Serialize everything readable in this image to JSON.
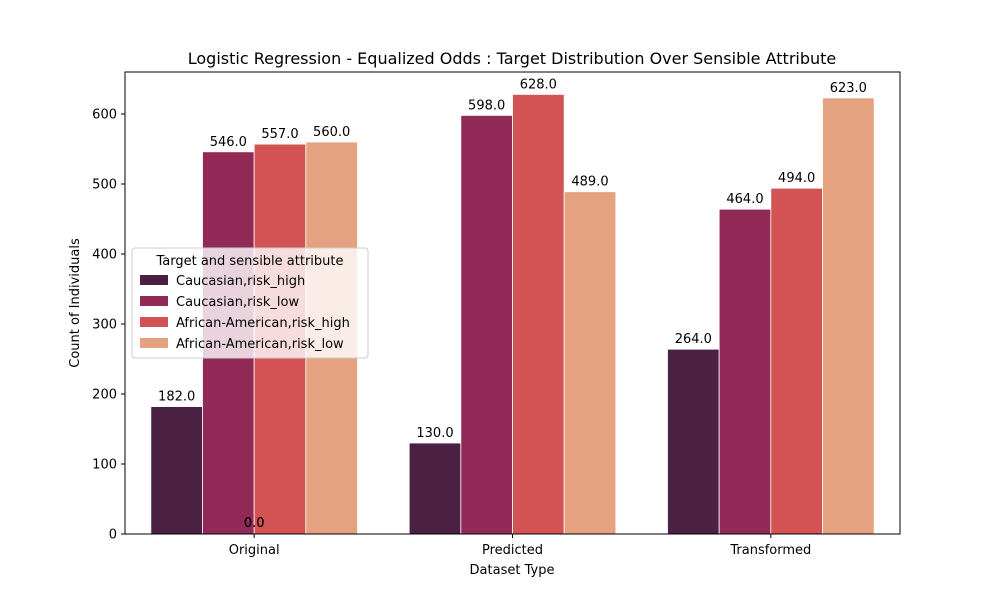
{
  "chart_data": {
    "type": "bar",
    "title": "Logistic Regression - Equalized Odds : Target Distribution Over Sensible Attribute",
    "xlabel": "Dataset Type",
    "ylabel": "Count of Individuals",
    "categories": [
      "Original",
      "Predicted",
      "Transformed"
    ],
    "ylim": [
      0,
      660
    ],
    "yticks": [
      0,
      100,
      200,
      300,
      400,
      500,
      600
    ],
    "legend": {
      "title": "Target and sensible attribute",
      "placement": "center-left"
    },
    "series": [
      {
        "name": "Caucasian,risk_high",
        "color": "#4a2142",
        "values": [
          182.0,
          130.0,
          264.0
        ],
        "labels": [
          "182.0",
          "130.0",
          "264.0"
        ]
      },
      {
        "name": "Caucasian,risk_low",
        "color": "#922a58",
        "values": [
          546.0,
          598.0,
          464.0
        ],
        "labels": [
          "546.0",
          "598.0",
          "464.0"
        ]
      },
      {
        "name": "African-American,risk_high",
        "color": "#d35355",
        "values": [
          557.0,
          628.0,
          494.0
        ],
        "labels": [
          "557.0",
          "628.0",
          "494.0"
        ]
      },
      {
        "name": "African-American,risk_low",
        "color": "#e5a280",
        "values": [
          560.0,
          489.0,
          623.0
        ],
        "labels": [
          "560.0",
          "489.0",
          "623.0"
        ]
      }
    ],
    "extra_annotations": [
      {
        "text": "0.0",
        "category": "Original",
        "value": 0
      },
      {
        "text": "0.0",
        "category": "Original",
        "value": 0
      }
    ],
    "grid": false
  }
}
